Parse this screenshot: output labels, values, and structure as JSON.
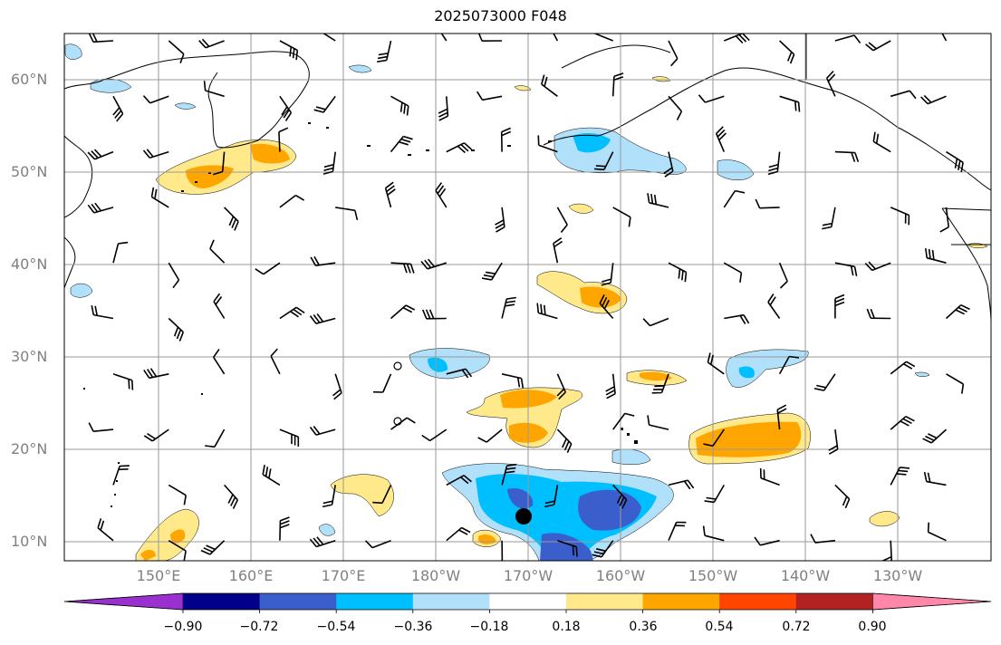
{
  "title": "2025073000 F048",
  "map": {
    "lat_labels": [
      "60°N",
      "50°N",
      "40°N",
      "30°N",
      "20°N",
      "10°N"
    ],
    "lon_labels": [
      "150°E",
      "160°E",
      "170°E",
      "180°W",
      "170°W",
      "160°W",
      "150°W",
      "140°W",
      "130°W"
    ]
  },
  "colorbar": {
    "labels": [
      "−0.90",
      "−0.72",
      "−0.54",
      "−0.36",
      "−0.18",
      "0.18",
      "0.36",
      "0.54",
      "0.72",
      "0.90"
    ],
    "colors": [
      "#9b30d0",
      "#00008b",
      "#3a5fcd",
      "#00bfff",
      "#b0e0fa",
      "#ffffff",
      "#ffe98a",
      "#ffa500",
      "#ff4500",
      "#b22222",
      "#ff88aa"
    ]
  }
}
